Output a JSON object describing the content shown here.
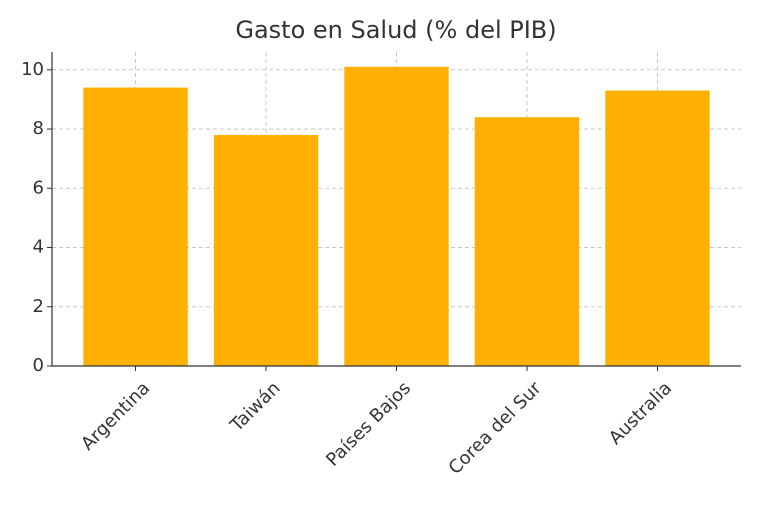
{
  "chart_data": {
    "type": "bar",
    "title": "Gasto en Salud (% del PIB)",
    "categories": [
      "Argentina",
      "Taiwán",
      "Países Bajos",
      "Corea del Sur",
      "Australia"
    ],
    "values": [
      9.4,
      7.8,
      10.1,
      8.4,
      9.3
    ],
    "color": "#ffb000",
    "ylim": [
      0,
      10.6
    ],
    "yticks": [
      0,
      2,
      4,
      6,
      8,
      10
    ],
    "grid": true
  }
}
